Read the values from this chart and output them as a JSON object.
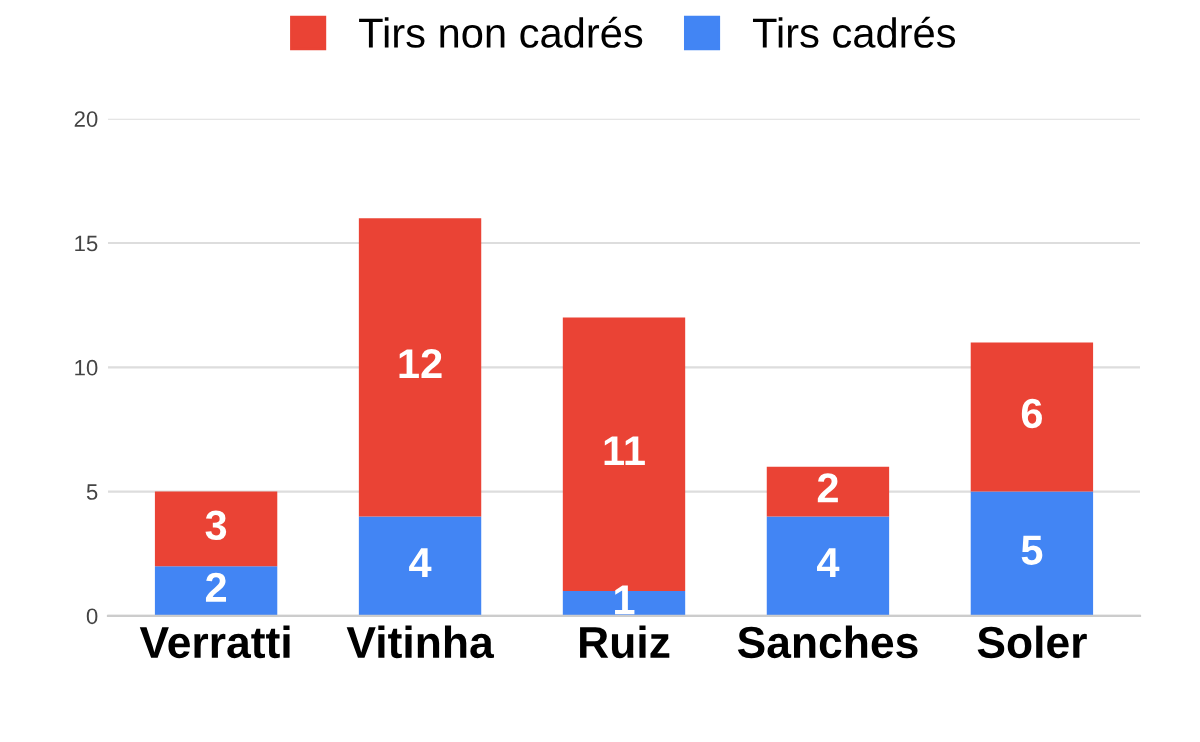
{
  "chart_data": {
    "type": "bar",
    "stacked": true,
    "categories": [
      "Verratti",
      "Vitinha",
      "Ruiz",
      "Sanches",
      "Soler"
    ],
    "series": [
      {
        "name": "Tirs cadrés",
        "color": "#4285f4",
        "values": [
          2,
          4,
          1,
          4,
          5
        ]
      },
      {
        "name": "Tirs non cadrés",
        "color": "#ea4335",
        "values": [
          3,
          12,
          11,
          2,
          6
        ]
      }
    ],
    "ylim": [
      0,
      20
    ],
    "yticks": [
      0,
      5,
      10,
      15,
      20
    ],
    "grid": "y",
    "legend": "top",
    "data_labels": true
  }
}
